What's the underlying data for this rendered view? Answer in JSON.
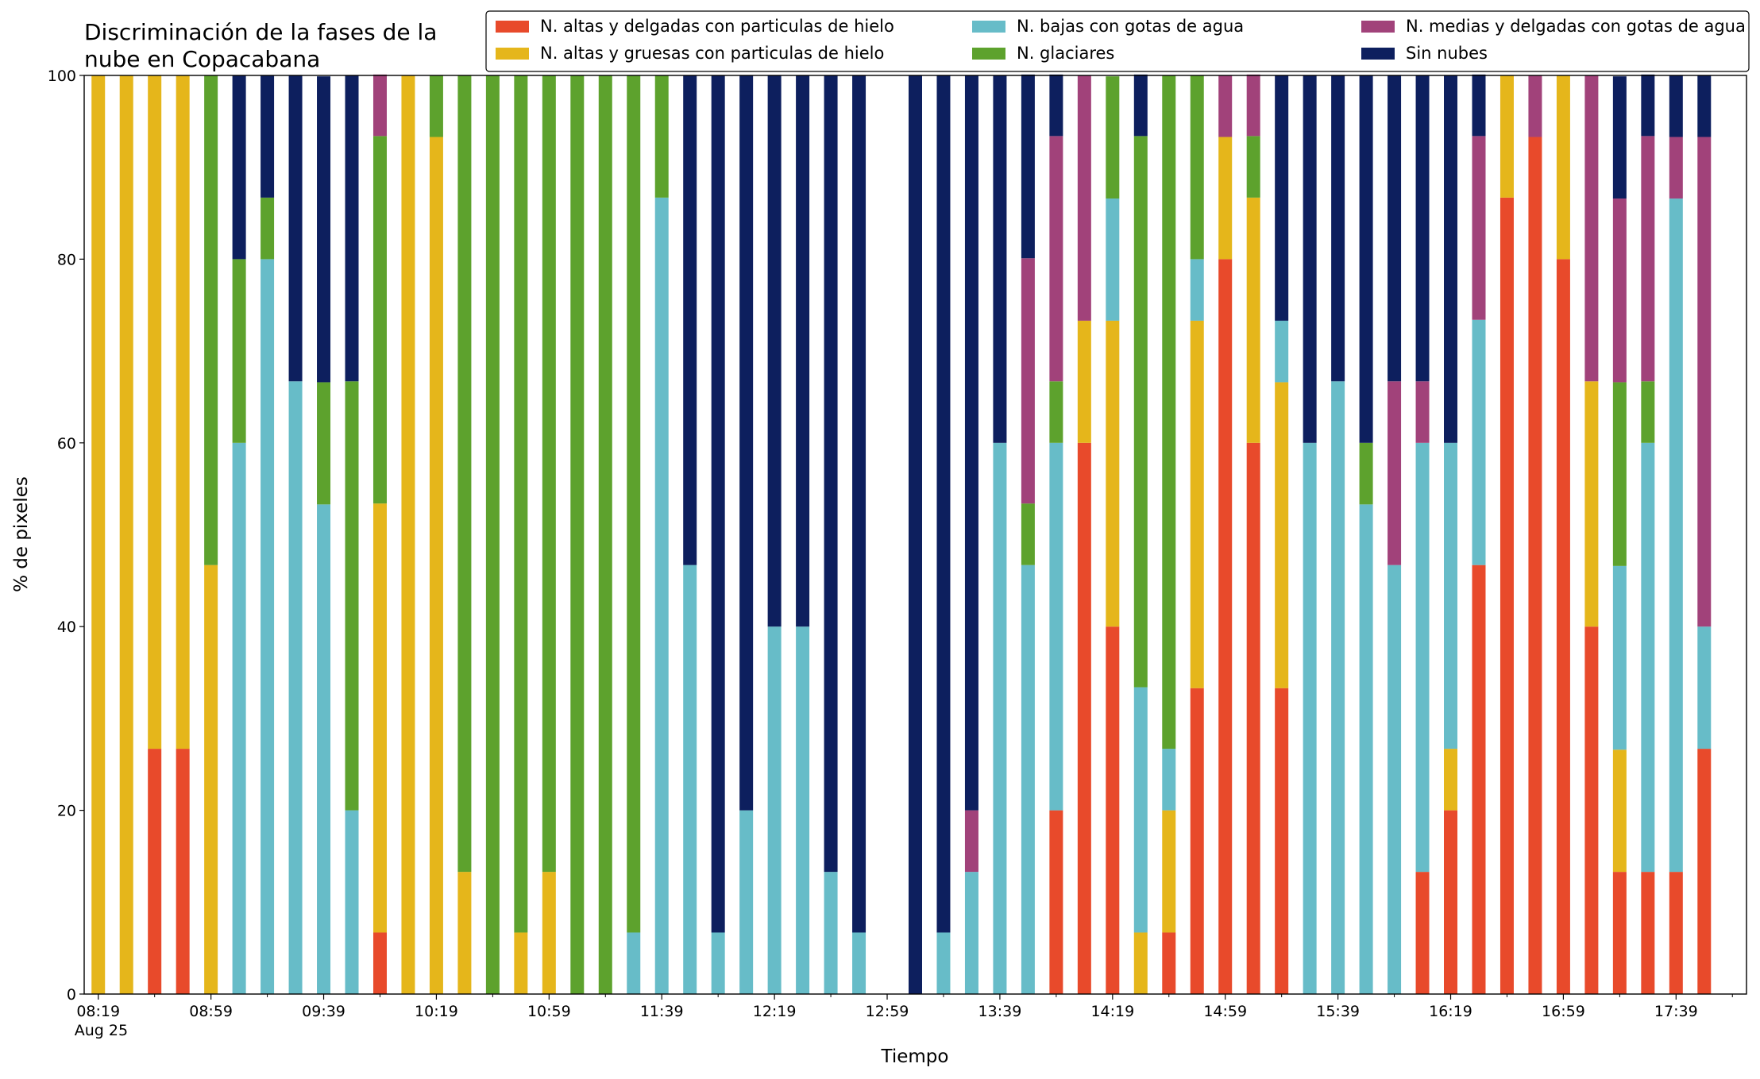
{
  "chart_data": {
    "type": "stacked_bar",
    "title": [
      "Discriminación de la fases de la",
      "nube en Copacabana"
    ],
    "x_label": "Tiempo",
    "y_label": "% de pixeles",
    "x": [
      "08:19",
      "08:29",
      "08:39",
      "08:49",
      "08:59",
      "09:09",
      "09:19",
      "09:29",
      "09:39",
      "09:49",
      "09:59",
      "10:09",
      "10:19",
      "10:29",
      "10:39",
      "10:49",
      "10:59",
      "11:09",
      "11:19",
      "11:29",
      "11:39",
      "11:49",
      "11:59",
      "12:09",
      "12:19",
      "12:29",
      "12:39",
      "12:49",
      "13:09",
      "13:19",
      "13:29",
      "13:39",
      "13:49",
      "13:59",
      "14:09",
      "14:19",
      "14:29",
      "14:39",
      "14:49",
      "14:59",
      "15:09",
      "15:19",
      "15:29",
      "15:39",
      "15:49",
      "15:59",
      "16:09",
      "16:19",
      "16:29",
      "16:39",
      "16:49",
      "16:59",
      "17:09",
      "17:19",
      "17:29",
      "17:39",
      "17:49"
    ],
    "xlim": [
      "08:14",
      "18:04"
    ],
    "xticks": [
      "08:19",
      "08:59",
      "09:39",
      "10:19",
      "10:59",
      "11:39",
      "12:19",
      "12:59",
      "13:39",
      "14:19",
      "14:59",
      "15:39",
      "16:19",
      "16:59",
      "17:39"
    ],
    "x_date": "Aug 25",
    "xminorticks": [
      "08:39",
      "09:19",
      "09:59",
      "10:39",
      "11:19",
      "11:59",
      "12:39",
      "13:19",
      "13:59",
      "14:39",
      "15:19",
      "15:59",
      "16:39",
      "17:19",
      "17:59"
    ],
    "ylim": [
      0,
      100
    ],
    "yticks": [
      0,
      20,
      40,
      60,
      80,
      100
    ],
    "grid": false,
    "legend": "top-right",
    "series": [
      {
        "name": "N. altas y delgadas con particulas de hielo",
        "color": "#e84a2b",
        "values": [
          0,
          0,
          26.7,
          26.7,
          0,
          0,
          0,
          0,
          0,
          0,
          6.7,
          0,
          0,
          0,
          0,
          0,
          0,
          0,
          0,
          0,
          0,
          0,
          0,
          0,
          0,
          0,
          0,
          0,
          0,
          0,
          0,
          0,
          0,
          20,
          60,
          40,
          0,
          6.7,
          33.3,
          80,
          60,
          33.3,
          0,
          0,
          0,
          0,
          13.3,
          20,
          46.7,
          86.7,
          93.3,
          80,
          40,
          13.3,
          13.3,
          13.3,
          26.7
        ]
      },
      {
        "name": "N. altas y gruesas con particulas de hielo",
        "color": "#e5b61b",
        "values": [
          100,
          100,
          73.3,
          73.3,
          46.7,
          0,
          0,
          0,
          0,
          0,
          46.7,
          100,
          93.3,
          13.3,
          0,
          6.7,
          13.3,
          0,
          0,
          0,
          0,
          0,
          0,
          0,
          0,
          0,
          0,
          0,
          0,
          0,
          0,
          0,
          0,
          0,
          13.3,
          33.3,
          6.7,
          13.3,
          40,
          13.3,
          26.7,
          33.3,
          0,
          0,
          0,
          0,
          0,
          6.7,
          0,
          13.3,
          0,
          20,
          26.7,
          13.3,
          0,
          0,
          0
        ]
      },
      {
        "name": "N. bajas con gotas de agua",
        "color": "#67bcc8",
        "values": [
          0,
          0,
          0,
          0,
          0,
          60,
          80,
          66.7,
          53.3,
          20,
          0,
          0,
          0,
          0,
          0,
          0,
          0,
          0,
          0,
          6.7,
          86.7,
          46.7,
          6.7,
          20,
          40,
          40,
          13.3,
          6.7,
          0,
          6.7,
          13.3,
          60,
          46.7,
          40,
          0,
          13.3,
          26.7,
          6.7,
          6.7,
          0,
          0,
          6.7,
          60,
          66.7,
          53.3,
          46.7,
          46.7,
          33.3,
          26.7,
          0,
          0,
          0,
          0,
          20,
          46.7,
          73.3,
          13.3
        ]
      },
      {
        "name": "N. glaciares",
        "color": "#5da22d",
        "values": [
          0,
          0,
          0,
          0,
          53.3,
          20,
          6.7,
          0,
          13.3,
          46.7,
          40,
          0,
          6.7,
          86.7,
          100,
          93.3,
          86.7,
          100,
          100,
          93.3,
          13.3,
          0,
          0,
          0,
          0,
          0,
          0,
          0,
          0,
          0,
          0,
          0,
          6.7,
          6.7,
          0,
          13.3,
          60,
          73.3,
          20,
          0,
          6.7,
          0,
          0,
          0,
          6.7,
          0,
          0,
          0,
          0,
          0,
          0,
          0,
          0,
          20,
          6.7,
          0,
          0
        ]
      },
      {
        "name": "N. medias y delgadas con gotas de agua",
        "color": "#a1427a",
        "values": [
          0,
          0,
          0,
          0,
          0,
          0,
          0,
          0,
          0,
          0,
          6.7,
          0,
          0,
          0,
          0,
          0,
          0,
          0,
          0,
          0,
          0,
          0,
          0,
          0,
          0,
          0,
          0,
          0,
          0,
          0,
          6.7,
          0,
          26.7,
          26.7,
          26.7,
          0,
          0,
          0,
          0,
          6.7,
          6.7,
          0,
          0,
          0,
          0,
          20,
          6.7,
          0,
          20,
          0,
          6.7,
          0,
          33.3,
          20,
          26.7,
          6.7,
          53.3
        ]
      },
      {
        "name": "Sin nubes",
        "color": "#0d1f5e",
        "values": [
          0,
          0,
          0,
          0,
          0,
          20,
          13.3,
          33.3,
          33.3,
          33.3,
          0,
          0,
          0,
          0,
          0,
          0,
          0,
          0,
          0,
          0,
          0,
          53.3,
          93.3,
          80,
          60,
          60,
          86.7,
          93.3,
          100,
          93.3,
          80,
          40,
          20,
          6.7,
          0,
          0,
          6.7,
          0,
          0,
          0,
          0,
          26.7,
          40,
          33.3,
          40,
          33.3,
          33.3,
          40,
          6.7,
          0,
          0,
          0,
          0,
          13.3,
          6.7,
          6.7,
          6.7
        ]
      }
    ]
  }
}
